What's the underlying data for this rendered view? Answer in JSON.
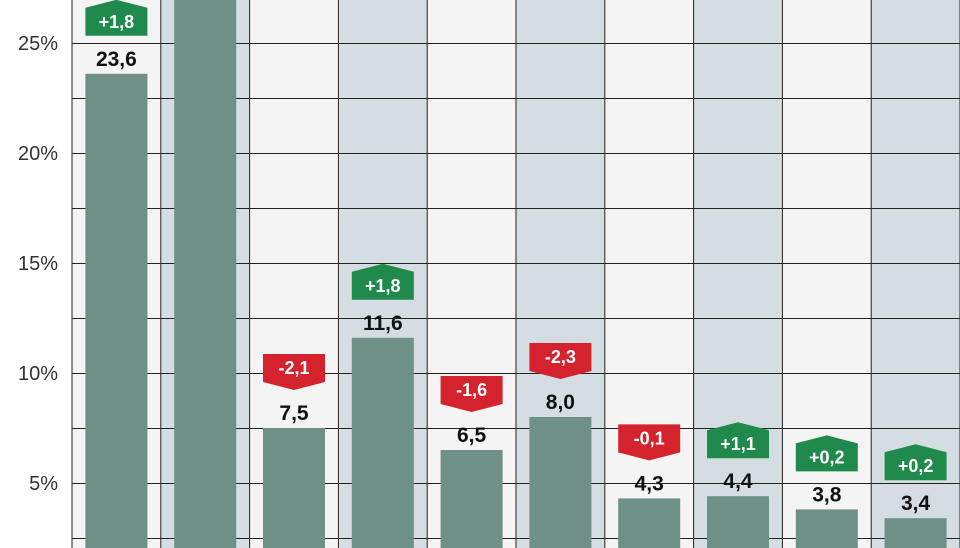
{
  "chart_data": {
    "type": "bar",
    "title": "",
    "xlabel": "",
    "ylabel": "",
    "ylim": [
      0,
      27.5
    ],
    "y_ticks": [
      "5%",
      "10%",
      "15%",
      "20%",
      "25%"
    ],
    "y_tick_values": [
      5,
      10,
      15,
      20,
      25
    ],
    "values": [
      23.6,
      27.0,
      7.5,
      11.6,
      6.5,
      8.0,
      4.3,
      4.4,
      3.8,
      3.4
    ],
    "value_labels": [
      "23,6",
      "",
      "7,5",
      "11,6",
      "6,5",
      "8,0",
      "4,3",
      "4,4",
      "3,8",
      "3,4"
    ],
    "change_labels": [
      "+1,8",
      "",
      "-2,1",
      "+1,8",
      "-1,6",
      "-2,3",
      "-0,1",
      "+1,1",
      "+0,2",
      "+0,2"
    ],
    "change_direction": [
      "up",
      "",
      "down",
      "up",
      "down",
      "down",
      "down",
      "up",
      "up",
      "up"
    ],
    "grid": true,
    "colors": {
      "bar": "#6f9087",
      "band_light": "#f4f4f4",
      "band_dark": "#d3dde2",
      "grid": "#222222",
      "up": "#1f8a4c",
      "down": "#d5232e",
      "text": "#111111"
    }
  }
}
